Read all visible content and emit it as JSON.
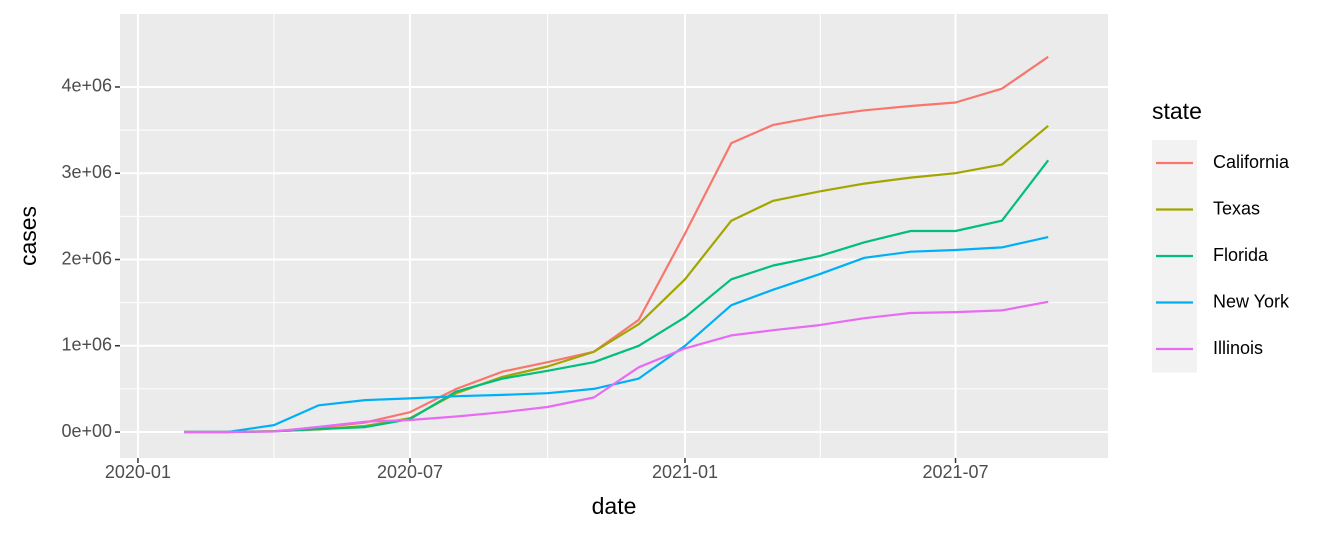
{
  "chart_data": {
    "type": "line",
    "x_label": "date",
    "y_label": "cases",
    "legend_title": "state",
    "x": [
      "2020-02",
      "2020-03",
      "2020-04",
      "2020-05",
      "2020-06",
      "2020-07",
      "2020-08",
      "2020-09",
      "2020-10",
      "2020-11",
      "2020-12",
      "2021-01",
      "2021-02",
      "2021-03",
      "2021-04",
      "2021-05",
      "2021-06",
      "2021-07",
      "2021-08",
      "2021-09"
    ],
    "series": [
      {
        "name": "California",
        "color": "#F8766D",
        "values": [
          0,
          0,
          10000,
          50000,
          110000,
          230000,
          500000,
          700000,
          810000,
          930000,
          1300000,
          2300000,
          3350000,
          3560000,
          3660000,
          3730000,
          3780000,
          3820000,
          3980000,
          4350000
        ]
      },
      {
        "name": "Texas",
        "color": "#A3A500",
        "values": [
          0,
          0,
          10000,
          30000,
          70000,
          160000,
          450000,
          640000,
          760000,
          930000,
          1250000,
          1770000,
          2450000,
          2680000,
          2790000,
          2880000,
          2950000,
          3000000,
          3100000,
          3550000
        ]
      },
      {
        "name": "Florida",
        "color": "#00BF7D",
        "values": [
          0,
          0,
          7000,
          35000,
          57000,
          150000,
          470000,
          620000,
          710000,
          810000,
          1000000,
          1330000,
          1770000,
          1930000,
          2040000,
          2200000,
          2330000,
          2330000,
          2450000,
          3150000
        ]
      },
      {
        "name": "New York",
        "color": "#00B0F6",
        "values": [
          0,
          0,
          80000,
          310000,
          370000,
          390000,
          415000,
          430000,
          450000,
          500000,
          620000,
          1000000,
          1470000,
          1650000,
          1830000,
          2020000,
          2090000,
          2110000,
          2140000,
          2260000
        ]
      },
      {
        "name": "Illinois",
        "color": "#E76BF3",
        "values": [
          0,
          0,
          6000,
          60000,
          120000,
          140000,
          180000,
          230000,
          290000,
          400000,
          750000,
          970000,
          1120000,
          1180000,
          1240000,
          1320000,
          1380000,
          1390000,
          1410000,
          1510000
        ]
      }
    ],
    "xlim": [
      "2019-12-20",
      "2021-10-11"
    ],
    "xticks": [
      "2020-01",
      "2020-07",
      "2021-01",
      "2021-07"
    ],
    "ylim": [
      -301000,
      4846000
    ],
    "yticks": [
      {
        "value": 0,
        "label": "0e+00"
      },
      {
        "value": 1000000,
        "label": "1e+06"
      },
      {
        "value": 2000000,
        "label": "2e+06"
      },
      {
        "value": 3000000,
        "label": "3e+06"
      },
      {
        "value": 4000000,
        "label": "4e+06"
      }
    ],
    "grid": true,
    "legend": "right"
  }
}
